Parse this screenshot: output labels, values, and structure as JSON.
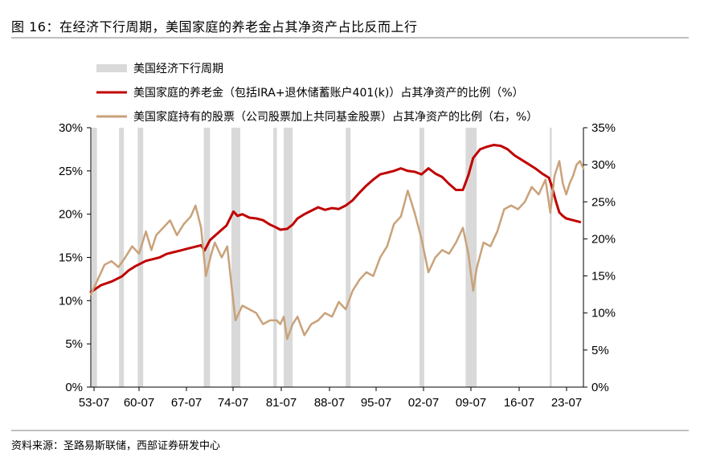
{
  "figure": {
    "title": "图 16：在经济下行周期，美国家庭的养老金占其净资产占比反而上行",
    "source": "资料来源：圣路易斯联储，西部证券研发中心"
  },
  "chart_data": {
    "type": "line",
    "x_ticks": [
      "53-07",
      "60-07",
      "67-07",
      "74-07",
      "81-07",
      "88-07",
      "95-07",
      "02-07",
      "09-07",
      "16-07",
      "23-07"
    ],
    "x_range": [
      1953.5,
      2025.0
    ],
    "y_left": {
      "ticks": [
        "0%",
        "5%",
        "10%",
        "15%",
        "20%",
        "25%",
        "30%"
      ],
      "ylim": [
        0,
        30
      ]
    },
    "y_right": {
      "ticks": [
        "0%",
        "5%",
        "10%",
        "15%",
        "20%",
        "25%",
        "30%",
        "35%"
      ],
      "ylim": [
        0,
        35
      ]
    },
    "recessions": [
      [
        1953.6,
        1954.4
      ],
      [
        1957.6,
        1958.3
      ],
      [
        1960.3,
        1961.1
      ],
      [
        1969.9,
        1970.8
      ],
      [
        1973.9,
        1975.2
      ],
      [
        1980.0,
        1980.5
      ],
      [
        1981.5,
        1982.8
      ],
      [
        1990.5,
        1991.2
      ],
      [
        2001.2,
        2001.9
      ],
      [
        2007.9,
        2009.5
      ],
      [
        2020.1,
        2020.4
      ]
    ],
    "legend": {
      "recession": "美国经济下行周期",
      "pension": "美国家庭的养老金（包括IRA+退休储蓄账户401(k)）占其净资产的比例（%）",
      "stocks": "美国家庭持有的股票（公司股票加上共同基金股票）占其净资产的比例（右，%）"
    },
    "colors": {
      "recession": "#d9d9d9",
      "pension": "#c00000",
      "stocks": "#c9a27a"
    },
    "series": [
      {
        "name": "pension",
        "axis": "left",
        "points": [
          [
            1953.5,
            11.0
          ],
          [
            1955.0,
            11.8
          ],
          [
            1956.5,
            12.2
          ],
          [
            1958.0,
            12.8
          ],
          [
            1959.0,
            13.5
          ],
          [
            1960.0,
            14.0
          ],
          [
            1961.5,
            14.6
          ],
          [
            1962.5,
            14.8
          ],
          [
            1963.5,
            15.0
          ],
          [
            1964.5,
            15.4
          ],
          [
            1965.5,
            15.6
          ],
          [
            1966.5,
            15.8
          ],
          [
            1967.5,
            16.0
          ],
          [
            1968.5,
            16.2
          ],
          [
            1969.5,
            16.4
          ],
          [
            1970.0,
            15.8
          ],
          [
            1970.8,
            17.0
          ],
          [
            1971.5,
            17.5
          ],
          [
            1972.5,
            18.2
          ],
          [
            1973.2,
            18.7
          ],
          [
            1974.2,
            20.3
          ],
          [
            1974.8,
            19.8
          ],
          [
            1975.5,
            20.0
          ],
          [
            1976.5,
            19.6
          ],
          [
            1977.5,
            19.5
          ],
          [
            1978.5,
            19.3
          ],
          [
            1979.5,
            18.8
          ],
          [
            1980.3,
            18.5
          ],
          [
            1981.0,
            18.2
          ],
          [
            1982.0,
            18.3
          ],
          [
            1982.8,
            18.8
          ],
          [
            1983.5,
            19.5
          ],
          [
            1984.5,
            20.0
          ],
          [
            1985.5,
            20.4
          ],
          [
            1986.5,
            20.8
          ],
          [
            1987.5,
            20.5
          ],
          [
            1988.5,
            20.7
          ],
          [
            1989.5,
            20.6
          ],
          [
            1990.5,
            21.0
          ],
          [
            1991.5,
            21.6
          ],
          [
            1992.5,
            22.5
          ],
          [
            1993.5,
            23.3
          ],
          [
            1994.5,
            24.0
          ],
          [
            1995.5,
            24.6
          ],
          [
            1996.5,
            24.8
          ],
          [
            1997.5,
            25.0
          ],
          [
            1998.5,
            25.3
          ],
          [
            1999.5,
            25.0
          ],
          [
            2000.5,
            24.9
          ],
          [
            2001.5,
            24.6
          ],
          [
            2002.5,
            25.3
          ],
          [
            2003.5,
            24.7
          ],
          [
            2004.5,
            24.3
          ],
          [
            2005.5,
            23.5
          ],
          [
            2006.5,
            22.8
          ],
          [
            2007.5,
            22.8
          ],
          [
            2008.3,
            24.5
          ],
          [
            2009.0,
            26.5
          ],
          [
            2010.0,
            27.5
          ],
          [
            2011.0,
            27.8
          ],
          [
            2012.0,
            28.0
          ],
          [
            2013.0,
            27.9
          ],
          [
            2014.0,
            27.5
          ],
          [
            2015.0,
            26.8
          ],
          [
            2016.0,
            26.3
          ],
          [
            2017.0,
            25.8
          ],
          [
            2018.0,
            25.3
          ],
          [
            2019.0,
            24.7
          ],
          [
            2020.0,
            24.2
          ],
          [
            2020.5,
            23.0
          ],
          [
            2021.0,
            21.5
          ],
          [
            2021.5,
            20.2
          ],
          [
            2022.0,
            19.8
          ],
          [
            2022.5,
            19.5
          ],
          [
            2023.5,
            19.3
          ],
          [
            2024.5,
            19.1
          ]
        ]
      },
      {
        "name": "stocks",
        "axis": "right",
        "points": [
          [
            1953.5,
            12.5
          ],
          [
            1954.5,
            14.5
          ],
          [
            1955.5,
            16.5
          ],
          [
            1956.5,
            17.0
          ],
          [
            1957.5,
            16.2
          ],
          [
            1958.5,
            17.5
          ],
          [
            1959.5,
            19.0
          ],
          [
            1960.5,
            18.0
          ],
          [
            1961.5,
            21.0
          ],
          [
            1962.3,
            18.5
          ],
          [
            1963.0,
            20.5
          ],
          [
            1964.0,
            21.5
          ],
          [
            1965.0,
            22.5
          ],
          [
            1966.0,
            20.5
          ],
          [
            1967.0,
            22.0
          ],
          [
            1968.0,
            23.0
          ],
          [
            1968.7,
            24.5
          ],
          [
            1969.5,
            21.5
          ],
          [
            1970.2,
            15.0
          ],
          [
            1971.0,
            18.0
          ],
          [
            1971.5,
            19.5
          ],
          [
            1972.5,
            17.5
          ],
          [
            1973.3,
            19.0
          ],
          [
            1974.0,
            13.0
          ],
          [
            1974.5,
            9.0
          ],
          [
            1975.5,
            11.0
          ],
          [
            1976.5,
            10.5
          ],
          [
            1977.5,
            10.0
          ],
          [
            1978.5,
            8.5
          ],
          [
            1979.5,
            9.0
          ],
          [
            1980.5,
            9.0
          ],
          [
            1981.0,
            8.5
          ],
          [
            1981.5,
            9.5
          ],
          [
            1982.0,
            6.5
          ],
          [
            1982.8,
            8.5
          ],
          [
            1983.5,
            9.5
          ],
          [
            1984.5,
            7.0
          ],
          [
            1985.5,
            8.5
          ],
          [
            1986.5,
            9.0
          ],
          [
            1987.5,
            10.0
          ],
          [
            1988.5,
            9.5
          ],
          [
            1989.5,
            11.5
          ],
          [
            1990.5,
            10.5
          ],
          [
            1991.5,
            13.0
          ],
          [
            1992.5,
            14.5
          ],
          [
            1993.5,
            15.5
          ],
          [
            1994.5,
            15.0
          ],
          [
            1995.5,
            17.5
          ],
          [
            1996.5,
            19.0
          ],
          [
            1997.5,
            22.0
          ],
          [
            1998.5,
            23.0
          ],
          [
            1999.5,
            26.5
          ],
          [
            2000.5,
            23.5
          ],
          [
            2001.5,
            20.0
          ],
          [
            2002.5,
            15.5
          ],
          [
            2003.5,
            17.5
          ],
          [
            2004.5,
            18.5
          ],
          [
            2005.5,
            18.0
          ],
          [
            2006.5,
            19.5
          ],
          [
            2007.5,
            21.5
          ],
          [
            2008.3,
            18.0
          ],
          [
            2009.0,
            13.0
          ],
          [
            2009.5,
            16.0
          ],
          [
            2010.5,
            19.5
          ],
          [
            2011.5,
            19.0
          ],
          [
            2012.5,
            21.0
          ],
          [
            2013.5,
            24.0
          ],
          [
            2014.5,
            24.5
          ],
          [
            2015.5,
            24.0
          ],
          [
            2016.5,
            25.0
          ],
          [
            2017.5,
            27.0
          ],
          [
            2018.5,
            26.0
          ],
          [
            2019.5,
            28.0
          ],
          [
            2020.2,
            23.5
          ],
          [
            2020.8,
            28.5
          ],
          [
            2021.5,
            30.5
          ],
          [
            2022.0,
            27.5
          ],
          [
            2022.5,
            26.0
          ],
          [
            2023.0,
            27.5
          ],
          [
            2023.5,
            28.5
          ],
          [
            2024.0,
            30.0
          ],
          [
            2024.5,
            30.5
          ],
          [
            2025.0,
            29.5
          ]
        ]
      }
    ]
  }
}
